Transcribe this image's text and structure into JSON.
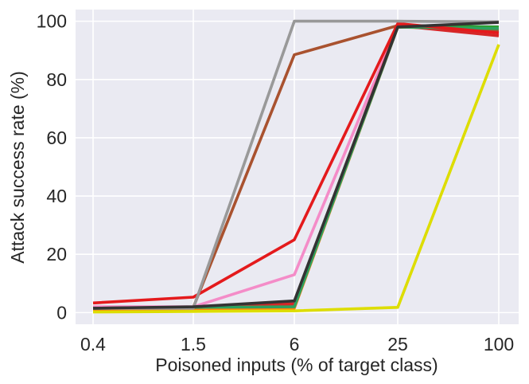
{
  "chart_data": {
    "type": "line",
    "title": "",
    "xlabel": "Poisoned inputs (% of target class)",
    "ylabel": "Attack success rate (%)",
    "categories": [
      "0.4",
      "1.5",
      "6",
      "25",
      "100"
    ],
    "ylim": [
      -4,
      104
    ],
    "yticks": [
      0,
      20,
      40,
      60,
      80,
      100
    ],
    "grid": true,
    "legend": "none",
    "series": [
      {
        "color": "#4c72b0",
        "values": [
          1.5,
          1.8,
          2.5,
          98.5,
          98.0
        ]
      },
      {
        "color": "#2ca02c",
        "values": [
          1.5,
          1.8,
          2.5,
          98.5,
          98.0
        ]
      },
      {
        "color": "#ff7f0e",
        "values": [
          1.0,
          1.3,
          1.5,
          98.0,
          97.0
        ]
      },
      {
        "color": "#8c564b",
        "values": [
          1.5,
          1.8,
          3.5,
          98.5,
          96.5
        ]
      },
      {
        "color": "#9467bd",
        "values": [
          1.5,
          1.8,
          3.0,
          98.5,
          95.5
        ]
      },
      {
        "color": "#17becf",
        "values": [
          1.5,
          1.8,
          3.0,
          98.5,
          96.0
        ]
      },
      {
        "color": "#a9522f",
        "values": [
          1.5,
          1.8,
          88.5,
          98.5,
          97.0
        ]
      },
      {
        "color": "#f48cc8",
        "values": [
          2.0,
          2.0,
          13.0,
          98.5,
          95.5
        ]
      },
      {
        "color": "#d62728",
        "values": [
          1.5,
          1.8,
          3.0,
          98.5,
          95.0
        ]
      },
      {
        "color": "#2ca25f",
        "values": [
          1.5,
          1.8,
          2.0,
          98.0,
          97.5
        ]
      },
      {
        "color": "#e41a1c",
        "values": [
          3.3,
          5.3,
          25.0,
          99.2,
          96.0
        ]
      },
      {
        "color": "#999999",
        "values": [
          1.5,
          1.5,
          100.0,
          100.0,
          99.8
        ]
      },
      {
        "color": "#dddd00",
        "values": [
          0.2,
          0.4,
          0.6,
          1.8,
          92.0
        ]
      },
      {
        "color": "#333333",
        "values": [
          1.5,
          2.0,
          4.0,
          98.0,
          99.6
        ]
      }
    ]
  }
}
